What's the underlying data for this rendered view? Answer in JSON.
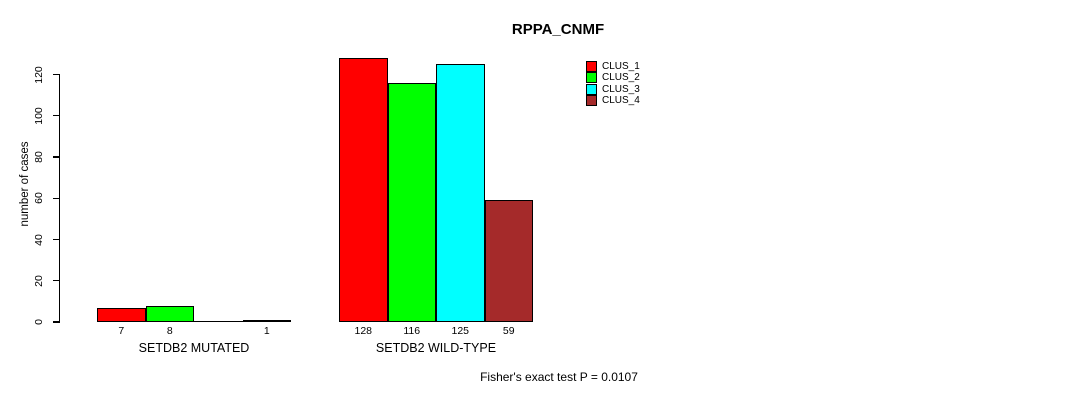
{
  "chart_data": {
    "type": "bar",
    "title": "RPPA_CNMF",
    "xlabel": "",
    "ylabel": "number of cases",
    "ylim": [
      0,
      120
    ],
    "yticks": [
      0,
      20,
      40,
      60,
      80,
      100,
      120
    ],
    "grid": false,
    "legend_position": "top-right",
    "categories": [
      "SETDB2 MUTATED",
      "SETDB2 WILD-TYPE"
    ],
    "series": [
      {
        "name": "CLUS_1",
        "color": "#ff0000",
        "values": [
          7,
          128
        ]
      },
      {
        "name": "CLUS_2",
        "color": "#00ff00",
        "values": [
          8,
          116
        ]
      },
      {
        "name": "CLUS_3",
        "color": "#00ffff",
        "values": [
          0,
          125
        ]
      },
      {
        "name": "CLUS_4",
        "color": "#a52a2a",
        "values": [
          1,
          59
        ]
      }
    ],
    "bar_value_labels": [
      [
        "7",
        "8",
        "",
        "1"
      ],
      [
        "128",
        "116",
        "125",
        "59"
      ]
    ],
    "annotation": "Fisher's exact test P = 0.0107"
  },
  "colors": {
    "background": "#ffffff",
    "axis": "#000000",
    "text": "#000000"
  }
}
